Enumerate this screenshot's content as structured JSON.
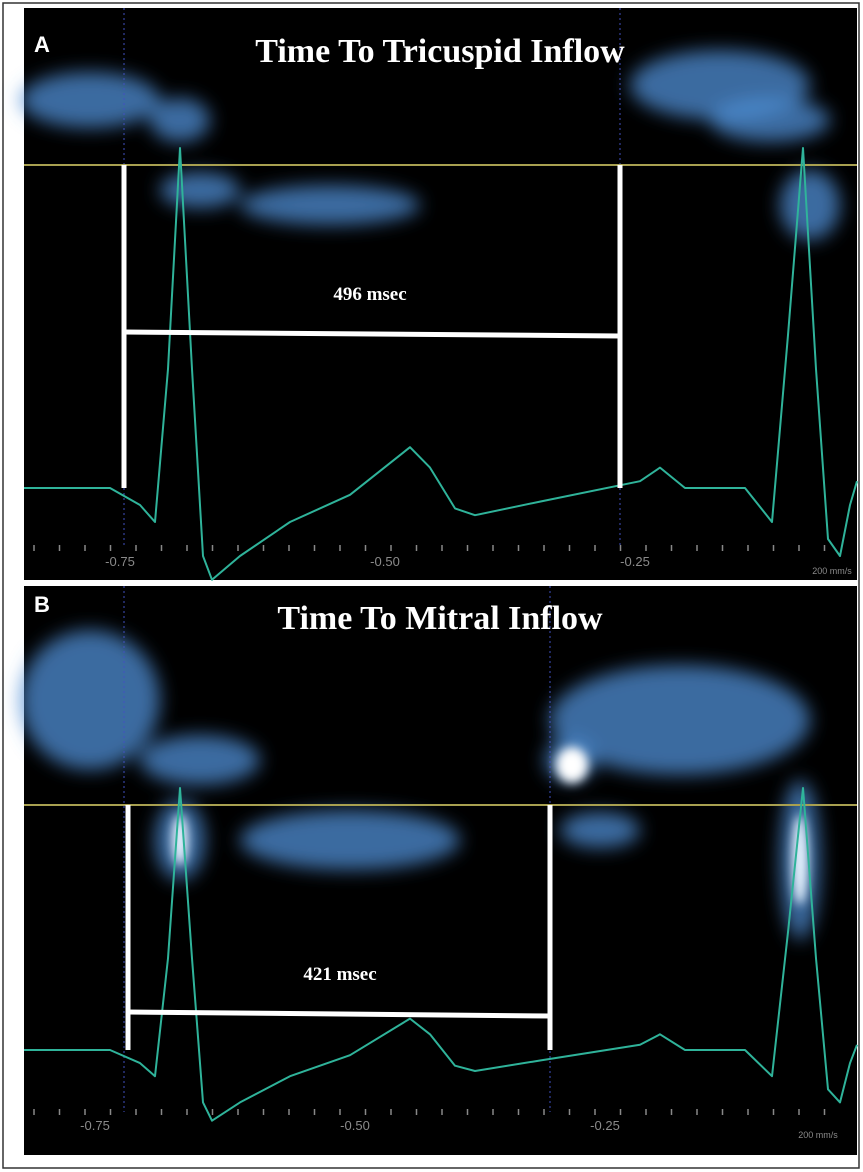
{
  "panels": [
    {
      "label": "A",
      "title": "Time To Tricuspid Inflow",
      "measurement": "496 msec",
      "axis_labels": [
        "-0.75",
        "-0.50",
        "-0.25"
      ],
      "scale": "200 mm/s"
    },
    {
      "label": "B",
      "title": "Time To Mitral Inflow",
      "measurement": "421 msec",
      "axis_labels": [
        "-0.75",
        "-0.50",
        "-0.25"
      ],
      "scale": "200 mm/s"
    }
  ]
}
